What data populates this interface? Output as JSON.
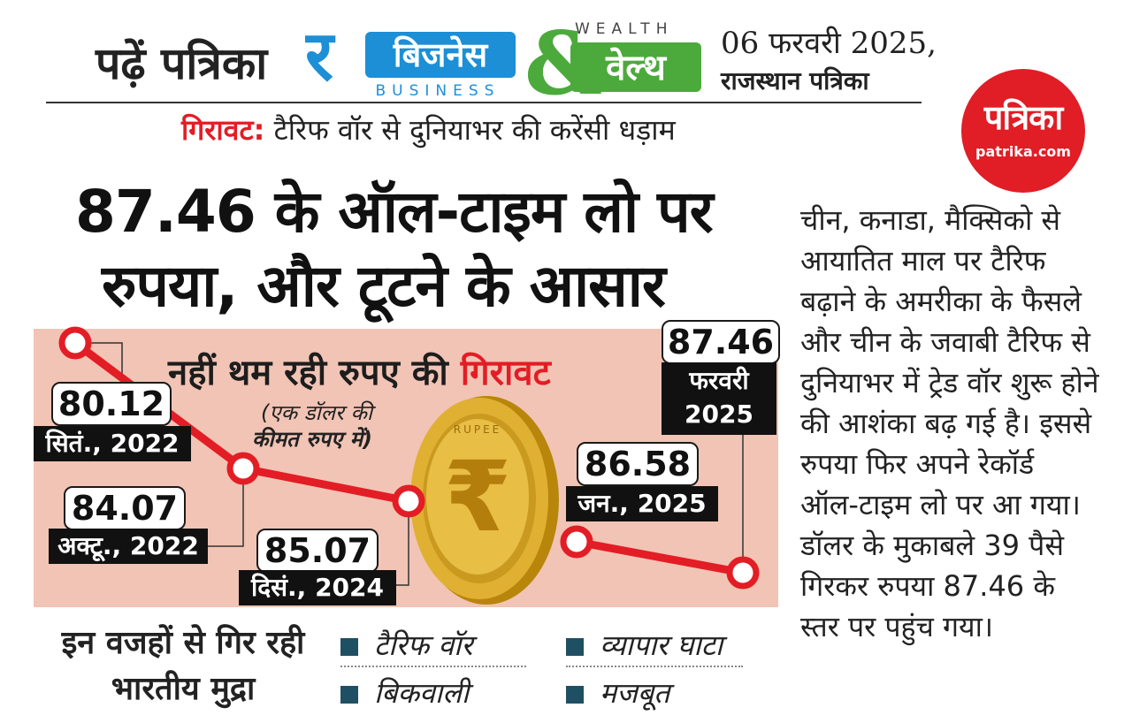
{
  "header": {
    "read_label": "पढ़ें पत्रिका",
    "section_hindi": "बिजनेस",
    "section_english": "BUSINESS",
    "wealth_english": "WEALTH",
    "wealth_hindi": "वेल्थ",
    "date": "06 फरवरी 2025,",
    "publication": "राजस्थान पत्रिका",
    "logo_main": "पत्रिका",
    "logo_site": "patrika.com"
  },
  "kicker": {
    "label": "गिरावट:",
    "text": " टैरिफ वॉर से दुनियाभर की करेंसी धड़ाम"
  },
  "headline": {
    "line1": "87.46 के ऑल-टाइम लो पर",
    "line2": "रुपया, और टूटने के आसार"
  },
  "side_text": "चीन, कनाडा, मैक्सिको से आयातित माल पर टैरिफ बढ़ाने के अमरीका के फैसले और चीन के जवाबी टैरिफ से दुनियाभर में ट्रेड वॉर शुरू होने की आशंका बढ़ गई है। इससे रुपया फिर अपने रेकॉर्ड ऑल-टाइम लो पर आ गया। डॉलर के मुकाबले 39 पैसे गिरकर रुपया 87.46 के स्तर पर पहुंच गया।",
  "chart_data": {
    "type": "line",
    "title_prefix": "नहीं थम रही रुपए की",
    "title_highlight": "गिरावट",
    "unit_line1": "(एक डॉलर की",
    "unit_line2": "कीमत रुपए में)",
    "categories": [
      "सितं., 2022",
      "अक्टू., 2022",
      "दिसं., 2024",
      "जन., 2025",
      "फरवरी 2025"
    ],
    "values": [
      80.12,
      84.07,
      85.07,
      86.58,
      87.46
    ],
    "value_labels": [
      "80.12",
      "84.07",
      "85.07",
      "86.58",
      "87.46"
    ],
    "date_labels": [
      "सितं., 2022",
      "अक्टू., 2022",
      "दिसं., 2024",
      "जन., 2025"
    ],
    "last_date_line1": "फरवरी",
    "last_date_line2": "2025",
    "ylim": [
      80,
      88
    ],
    "line_color": "#e31d25",
    "background": "#f1c4b5",
    "coin_symbol": "₹",
    "coin_text": "RUPEE"
  },
  "reasons": {
    "title": "इन वजहों से गिर रही भारतीय मुद्रा",
    "items": [
      "टैरिफ वॉर",
      "व्यापार घाटा",
      "बिकवाली",
      "मजबूत"
    ]
  },
  "colors": {
    "accent_red": "#e31d25",
    "green": "#4caa3c",
    "blue": "#1c8fd6",
    "dark_teal": "#1f4f63"
  }
}
